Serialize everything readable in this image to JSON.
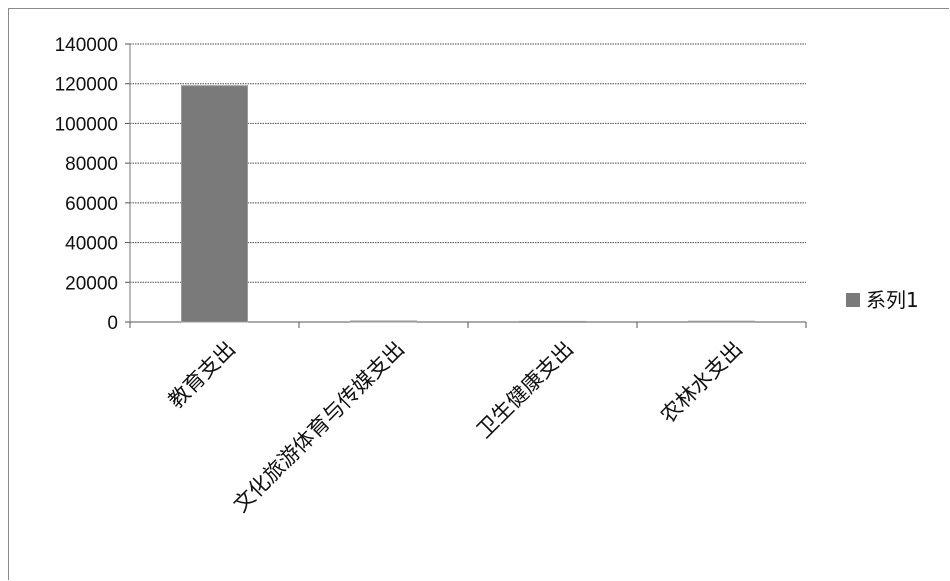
{
  "chart_data": {
    "type": "bar",
    "categories": [
      "教育支出",
      "文化旅游体育与传媒支出",
      "卫生健康支出",
      "农林水支出"
    ],
    "series": [
      {
        "name": "系列1",
        "values": [
          119000,
          500,
          300,
          400
        ],
        "color": "#7a7a7a"
      }
    ],
    "yticks": [
      "0",
      "20000",
      "40000",
      "60000",
      "80000",
      "100000",
      "120000",
      "140000"
    ],
    "ylim": [
      0,
      140000
    ],
    "grid": true,
    "legend_position": "right"
  }
}
